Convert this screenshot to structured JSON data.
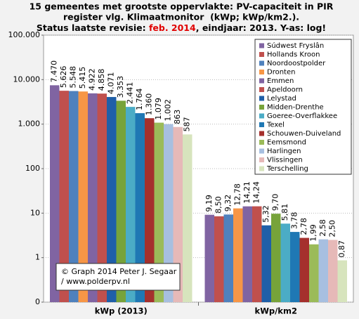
{
  "chart_data": {
    "type": "bar",
    "title_lines": [
      "15 gemeentes met grootste oppervlakte: PV-capaciteit in PIR",
      "register vlg. Klimaatmonitor  (kWp; kWp/km2.)."
    ],
    "title_last_line": [
      "Status laatste revisie: ",
      "feb. 2014",
      ", eindjaar: 2013. Y-as: log!"
    ],
    "title_highlight_color": "#e00000",
    "annotations": [
      "© Graph 2014 Peter J. Segaar",
      "/ www.polderpv.nl"
    ],
    "categories": [
      "kWp (2013)",
      "kWp/km2"
    ],
    "log_scale": true,
    "grid": true,
    "ylim": [
      0.1,
      100000
    ],
    "yticks": [
      {
        "value": 0.1,
        "label": "0"
      },
      1,
      10,
      100,
      {
        "value": 1000,
        "label": "1.000"
      },
      {
        "value": 10000,
        "label": "10.000"
      },
      {
        "value": 100000,
        "label": "100.000"
      }
    ],
    "legend_position": "top-right",
    "series": [
      {
        "name": "Súdwest Fryslân",
        "color": "#8064a2",
        "values": [
          7470,
          9.19
        ],
        "value_labels": [
          "7.470",
          "9,19"
        ],
        "value_label_color": "#e00000"
      },
      {
        "name": "Hollands Kroon",
        "color": "#c0504d",
        "values": [
          5626,
          8.5
        ],
        "value_labels": [
          "5.626",
          "8,50"
        ]
      },
      {
        "name": "Noordoostpolder",
        "color": "#4f81bd",
        "values": [
          5548,
          9.32
        ],
        "value_labels": [
          "5.548",
          "9,32"
        ]
      },
      {
        "name": "Dronten",
        "color": "#f79646",
        "values": [
          5415,
          12.78
        ],
        "value_labels": [
          "5.415",
          "12,78"
        ]
      },
      {
        "name": "Emmen",
        "color": "#8064a2",
        "values": [
          4922,
          14.21
        ],
        "value_labels": [
          "4.922",
          "14,21"
        ]
      },
      {
        "name": "Apeldoorn",
        "color": "#c0504d",
        "values": [
          4858,
          14.24
        ],
        "value_labels": [
          "4.858",
          "14,24"
        ],
        "value_label_color": "#e00000",
        "legend_label_color": "#e00000"
      },
      {
        "name": "Lelystad",
        "color": "#1f5fa8",
        "values": [
          4071,
          5.32
        ],
        "value_labels": [
          "4.071",
          "5,32"
        ]
      },
      {
        "name": "Midden-Drenthe",
        "color": "#77a33a",
        "values": [
          3353,
          9.7
        ],
        "value_labels": [
          "3.353",
          "9,70"
        ]
      },
      {
        "name": "Goeree-Overflakkee",
        "color": "#4bacc6",
        "values": [
          2441,
          5.81
        ],
        "value_labels": [
          "2.441",
          "5,81"
        ]
      },
      {
        "name": "Texel",
        "color": "#1f78b4",
        "values": [
          1764,
          3.78
        ],
        "value_labels": [
          "1.764",
          "3,78"
        ]
      },
      {
        "name": "Schouwen-Duiveland",
        "color": "#a5302d",
        "values": [
          1360,
          2.78
        ],
        "value_labels": [
          "1.360",
          "2,78"
        ]
      },
      {
        "name": "Eemsmond",
        "color": "#9bbb59",
        "values": [
          1079,
          1.99
        ],
        "value_labels": [
          "1.079",
          "1,99"
        ]
      },
      {
        "name": "Harlingen",
        "color": "#a7bfe0",
        "values": [
          1002,
          2.58
        ],
        "value_labels": [
          "1.002",
          "2,58"
        ]
      },
      {
        "name": "Vlissingen",
        "color": "#e6b9b8",
        "values": [
          863,
          2.5
        ],
        "value_labels": [
          "863",
          "2,50"
        ]
      },
      {
        "name": "Terschelling",
        "color": "#d7e4bd",
        "values": [
          587,
          0.87
        ],
        "value_labels": [
          "587",
          "0,87"
        ]
      }
    ]
  }
}
